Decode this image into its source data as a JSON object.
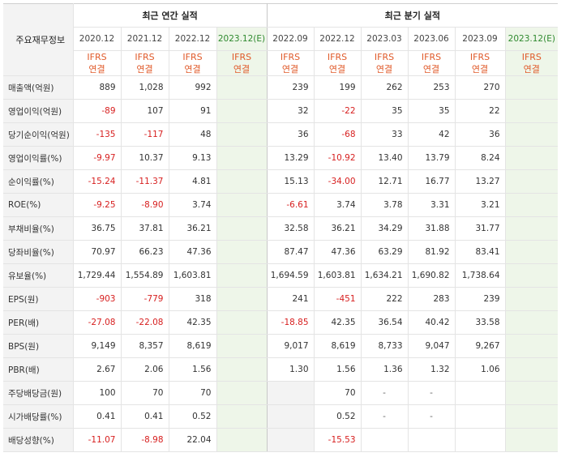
{
  "corner_label": "주요재무정보",
  "groups": {
    "annual": "최근 연간 실적",
    "quarterly": "최근 분기 실적"
  },
  "periods": [
    "2020.12",
    "2021.12",
    "2022.12",
    "2023.12(E)",
    "2022.09",
    "2022.12",
    "2023.03",
    "2023.06",
    "2023.09",
    "2023.12(E)"
  ],
  "ifrs_line1": "IFRS",
  "ifrs_line2": "연결",
  "rows": [
    {
      "label": "매출액(억원)",
      "values": [
        "889",
        "1,028",
        "992",
        "",
        "239",
        "199",
        "262",
        "253",
        "270",
        ""
      ]
    },
    {
      "label": "영업이익(억원)",
      "values": [
        "-89",
        "107",
        "91",
        "",
        "32",
        "-22",
        "35",
        "35",
        "22",
        ""
      ]
    },
    {
      "label": "당기순이익(억원)",
      "values": [
        "-135",
        "-117",
        "48",
        "",
        "36",
        "-68",
        "33",
        "42",
        "36",
        ""
      ]
    },
    {
      "label": "영업이익률(%)",
      "values": [
        "-9.97",
        "10.37",
        "9.13",
        "",
        "13.29",
        "-10.92",
        "13.40",
        "13.79",
        "8.24",
        ""
      ]
    },
    {
      "label": "순이익률(%)",
      "values": [
        "-15.24",
        "-11.37",
        "4.81",
        "",
        "15.13",
        "-34.00",
        "12.71",
        "16.77",
        "13.27",
        ""
      ]
    },
    {
      "label": "ROE(%)",
      "values": [
        "-9.25",
        "-8.90",
        "3.74",
        "",
        "-6.61",
        "3.74",
        "3.78",
        "3.31",
        "3.21",
        ""
      ]
    },
    {
      "label": "부채비율(%)",
      "values": [
        "36.75",
        "37.81",
        "36.21",
        "",
        "32.58",
        "36.21",
        "34.29",
        "31.88",
        "31.77",
        ""
      ]
    },
    {
      "label": "당좌비율(%)",
      "values": [
        "70.97",
        "66.23",
        "47.36",
        "",
        "87.47",
        "47.36",
        "63.29",
        "81.92",
        "83.41",
        ""
      ]
    },
    {
      "label": "유보율(%)",
      "values": [
        "1,729.44",
        "1,554.89",
        "1,603.81",
        "",
        "1,694.59",
        "1,603.81",
        "1,634.21",
        "1,690.82",
        "1,738.64",
        ""
      ]
    },
    {
      "label": "EPS(원)",
      "values": [
        "-903",
        "-779",
        "318",
        "",
        "241",
        "-451",
        "222",
        "283",
        "239",
        ""
      ]
    },
    {
      "label": "PER(배)",
      "values": [
        "-27.08",
        "-22.08",
        "42.35",
        "",
        "-18.85",
        "42.35",
        "36.54",
        "40.42",
        "33.58",
        ""
      ]
    },
    {
      "label": "BPS(원)",
      "values": [
        "9,149",
        "8,357",
        "8,619",
        "",
        "9,017",
        "8,619",
        "8,733",
        "9,047",
        "9,267",
        ""
      ]
    },
    {
      "label": "PBR(배)",
      "values": [
        "2.67",
        "2.06",
        "1.56",
        "",
        "1.30",
        "1.56",
        "1.36",
        "1.32",
        "1.06",
        ""
      ]
    },
    {
      "label": "주당배당금(원)",
      "values": [
        "100",
        "70",
        "70",
        "",
        "",
        "70",
        "-",
        "-",
        "",
        ""
      ]
    },
    {
      "label": "시가배당률(%)",
      "values": [
        "0.41",
        "0.41",
        "0.52",
        "",
        "",
        "0.52",
        "-",
        "-",
        "",
        ""
      ]
    },
    {
      "label": "배당성향(%)",
      "values": [
        "-11.07",
        "-8.98",
        "22.04",
        "",
        "",
        "-15.53",
        "",
        "",
        "",
        ""
      ]
    }
  ]
}
